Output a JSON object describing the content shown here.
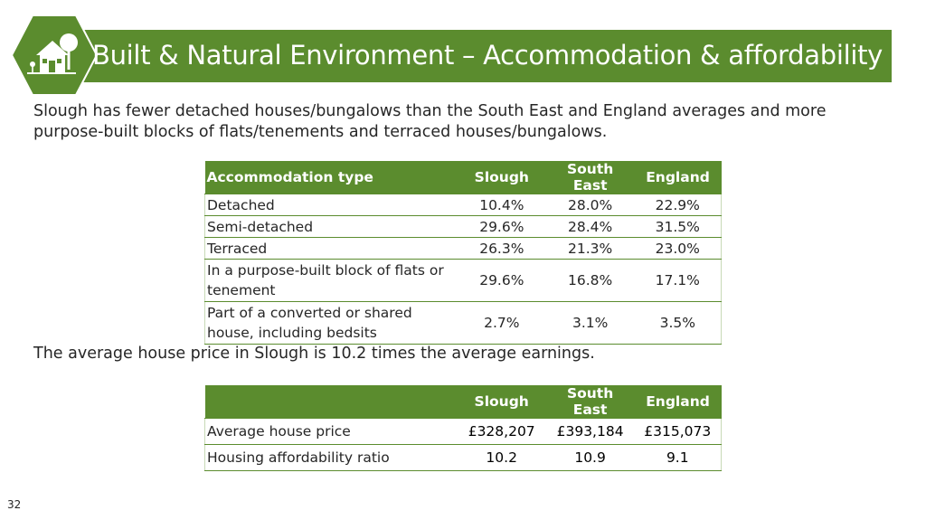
{
  "header": {
    "title": "Built & Natural Environment – Accommodation & affordability",
    "icon": "house-tree-icon",
    "accent_color": "#5b8c2e"
  },
  "intro_text": "Slough has fewer detached houses/bungalows than the South East and England averages and more purpose-built blocks of flats/tenements and terraced houses/bungalows.",
  "accommodation_table": {
    "headers": [
      "Accommodation type",
      "Slough",
      "South East",
      "England"
    ],
    "rows": [
      [
        "Detached",
        "10.4%",
        "28.0%",
        "22.9%"
      ],
      [
        "Semi-detached",
        "29.6%",
        "28.4%",
        "31.5%"
      ],
      [
        "Terraced",
        "26.3%",
        "21.3%",
        "23.0%"
      ],
      [
        "In a purpose-built block of flats or tenement",
        "29.6%",
        "16.8%",
        "17.1%"
      ],
      [
        "Part of a converted or shared house, including bedsits",
        "2.7%",
        "3.1%",
        "3.5%"
      ]
    ]
  },
  "price_text": "The average house price in Slough is 10.2 times the average earnings.",
  "price_table": {
    "headers": [
      "",
      "Slough",
      "South East",
      "England"
    ],
    "rows": [
      [
        "Average house price",
        "£328,207",
        "£393,184",
        "£315,073"
      ],
      [
        "Housing affordability ratio",
        "10.2",
        "10.9",
        "9.1"
      ]
    ]
  },
  "page_number": "32"
}
